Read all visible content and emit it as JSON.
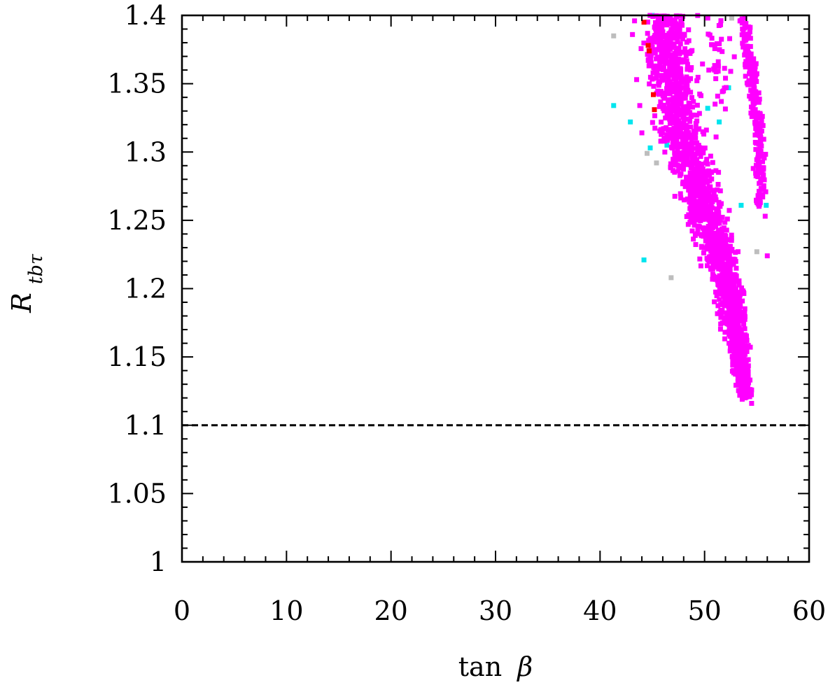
{
  "chart_data": {
    "type": "scatter",
    "title": "",
    "xlabel": "tan β",
    "xlabel_parts": {
      "text": "tan",
      "symbol": "β"
    },
    "ylabel": "R_tbτ",
    "ylabel_parts": {
      "symbol": "R",
      "subscript": "tbτ"
    },
    "xlim": [
      0,
      60
    ],
    "ylim": [
      1.0,
      1.4
    ],
    "xticks": [
      0,
      10,
      20,
      30,
      40,
      50,
      60
    ],
    "yticks": [
      1,
      1.05,
      1.1,
      1.15,
      1.2,
      1.25,
      1.3,
      1.35,
      1.4
    ],
    "xtick_labels": [
      "0",
      "10",
      "20",
      "30",
      "40",
      "50",
      "60"
    ],
    "ytick_labels": [
      "1",
      "1.05",
      "1.1",
      "1.15",
      "1.2",
      "1.25",
      "1.3",
      "1.35",
      "1.4"
    ],
    "x_minor_step": 2,
    "y_minor_step": 0.01,
    "grid": false,
    "legend": "none",
    "reference_lines": [
      {
        "orientation": "horizontal",
        "y": 1.1,
        "style": "dashed",
        "color": "#000000"
      }
    ],
    "series": [
      {
        "color": "#bdbdbd",
        "marker": "square",
        "points": [
          [
            41.3,
            1.385
          ],
          [
            44.5,
            1.299
          ],
          [
            45.4,
            1.292
          ],
          [
            46.8,
            1.208
          ],
          [
            52.6,
            1.398
          ],
          [
            53.3,
            1.129
          ],
          [
            55.0,
            1.227
          ]
        ]
      },
      {
        "color": "#00e5ee",
        "marker": "square",
        "points": [
          [
            41.3,
            1.334
          ],
          [
            42.9,
            1.322
          ],
          [
            44.8,
            1.303
          ],
          [
            46.4,
            1.305
          ],
          [
            44.2,
            1.221
          ],
          [
            50.3,
            1.332
          ],
          [
            51.4,
            1.322
          ],
          [
            52.3,
            1.347
          ],
          [
            53.5,
            1.261
          ],
          [
            55.9,
            1.261
          ],
          [
            45.0,
            1.4
          ]
        ]
      },
      {
        "color": "#ff00ff",
        "marker": "square",
        "regions": [
          {
            "name": "main band",
            "count": 1900,
            "profile": [
              [
                1.4,
                43.3,
                49.8
              ],
              [
                1.38,
                43.4,
                49.4
              ],
              [
                1.36,
                43.7,
                49.6
              ],
              [
                1.34,
                44.1,
                50.0
              ],
              [
                1.32,
                44.6,
                50.6
              ],
              [
                1.3,
                45.4,
                51.3
              ],
              [
                1.28,
                46.3,
                52.0
              ],
              [
                1.26,
                47.2,
                52.7
              ],
              [
                1.24,
                48.2,
                53.3
              ],
              [
                1.22,
                49.3,
                53.9
              ],
              [
                1.2,
                50.3,
                54.3
              ],
              [
                1.18,
                51.0,
                54.5
              ],
              [
                1.16,
                51.7,
                54.6
              ],
              [
                1.14,
                52.3,
                54.7
              ],
              [
                1.12,
                53.2,
                54.7
              ]
            ]
          },
          {
            "name": "right band",
            "count": 230,
            "profile": [
              [
                1.4,
                52.9,
                54.4
              ],
              [
                1.38,
                53.3,
                54.8
              ],
              [
                1.36,
                53.7,
                55.2
              ],
              [
                1.34,
                54.0,
                55.5
              ],
              [
                1.32,
                54.3,
                55.8
              ],
              [
                1.3,
                54.5,
                56.0
              ],
              [
                1.28,
                54.6,
                56.1
              ],
              [
                1.26,
                54.7,
                56.2
              ]
            ]
          },
          {
            "name": "upper-middle gap fill",
            "count": 35,
            "profile": [
              [
                1.4,
                49.3,
                52.8
              ],
              [
                1.36,
                49.6,
                53.0
              ],
              [
                1.33,
                50.0,
                53.3
              ]
            ]
          }
        ],
        "points": [
          [
            53.6,
            1.119
          ],
          [
            54.5,
            1.116
          ],
          [
            53.9,
            1.126
          ],
          [
            56.0,
            1.224
          ],
          [
            55.8,
            1.253
          ],
          [
            52.4,
            1.383
          ],
          [
            52.0,
            1.354
          ],
          [
            51.6,
            1.337
          ],
          [
            51.1,
            1.311
          ],
          [
            43.3,
            1.396
          ],
          [
            43.1,
            1.386
          ],
          [
            43.5,
            1.353
          ],
          [
            43.8,
            1.334
          ],
          [
            44.0,
            1.314
          ],
          [
            50.7,
            1.238
          ],
          [
            51.1,
            1.265
          ]
        ]
      },
      {
        "color": "#ff0000",
        "marker": "square",
        "points": [
          [
            44.2,
            1.395
          ],
          [
            44.6,
            1.378
          ],
          [
            44.7,
            1.374
          ],
          [
            45.1,
            1.342
          ],
          [
            45.2,
            1.331
          ]
        ]
      }
    ]
  }
}
